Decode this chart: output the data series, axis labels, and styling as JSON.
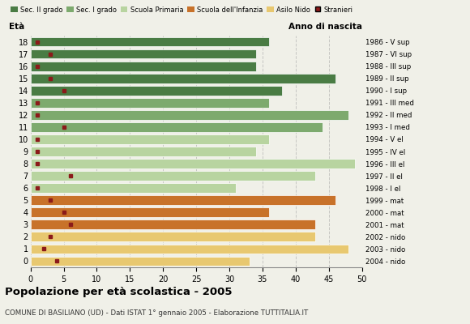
{
  "ages": [
    18,
    17,
    16,
    15,
    14,
    13,
    12,
    11,
    10,
    9,
    8,
    7,
    6,
    5,
    4,
    3,
    2,
    1,
    0
  ],
  "years": [
    "1986 - V sup",
    "1987 - VI sup",
    "1988 - III sup",
    "1989 - II sup",
    "1990 - I sup",
    "1991 - III med",
    "1992 - II med",
    "1993 - I med",
    "1994 - V el",
    "1995 - IV el",
    "1996 - III el",
    "1997 - II el",
    "1998 - I el",
    "1999 - mat",
    "2000 - mat",
    "2001 - mat",
    "2002 - nido",
    "2003 - nido",
    "2004 - nido"
  ],
  "bar_values": [
    36,
    34,
    34,
    46,
    38,
    36,
    48,
    44,
    36,
    34,
    49,
    43,
    31,
    46,
    36,
    43,
    43,
    48,
    33
  ],
  "stranieri": [
    1,
    3,
    1,
    3,
    5,
    1,
    1,
    5,
    1,
    1,
    1,
    6,
    1,
    3,
    5,
    6,
    3,
    2,
    4
  ],
  "bar_colors": [
    "#4a7c44",
    "#4a7c44",
    "#4a7c44",
    "#4a7c44",
    "#4a7c44",
    "#7daa6e",
    "#7daa6e",
    "#7daa6e",
    "#b8d4a0",
    "#b8d4a0",
    "#b8d4a0",
    "#b8d4a0",
    "#b8d4a0",
    "#c8722a",
    "#c8722a",
    "#c8722a",
    "#e8c870",
    "#e8c870",
    "#e8c870"
  ],
  "category_colors": {
    "Sec. II grado": "#4a7c44",
    "Sec. I grado": "#7daa6e",
    "Scuola Primaria": "#b8d4a0",
    "Scuola dell'Infanzia": "#c8722a",
    "Asilo Nido": "#e8c870",
    "Stranieri": "#8b1a1a"
  },
  "title": "Popolazione per età scolastica - 2005",
  "subtitle": "COMUNE DI BASILIANO (UD) - Dati ISTAT 1° gennaio 2005 - Elaborazione TUTTITALIA.IT",
  "xlabel_eta": "Età",
  "xlabel_anno": "Anno di nascita",
  "xlim": [
    0,
    50
  ],
  "background_color": "#f0f0e8",
  "grid_color": "#aaaaaa"
}
